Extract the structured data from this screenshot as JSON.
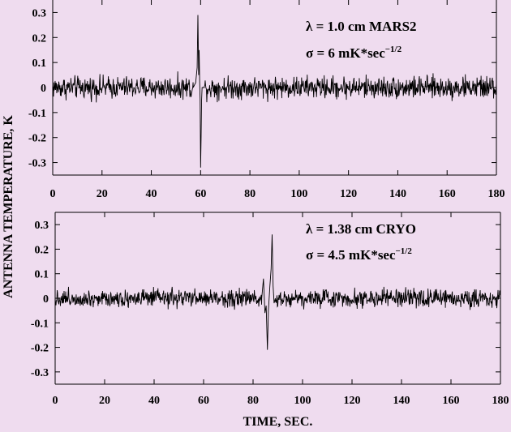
{
  "chart_data": {
    "type": "line",
    "shared_ylabel": "ANTENNA TEMPERATURE, K",
    "panels": [
      {
        "annotation_line1": "λ = 1.0 cm MARS2",
        "annotation_line2_base": "σ = 6 mK*sec",
        "annotation_line2_sup": "−1/2",
        "xlabel": "",
        "xlim": [
          0,
          180
        ],
        "ylim": [
          -0.35,
          0.35
        ],
        "xticks": [
          "0",
          "20",
          "40",
          "60",
          "80",
          "100",
          "120",
          "140",
          "160",
          "180"
        ],
        "yticks": [
          "0.3",
          "0.2",
          "0.1",
          "0",
          "-0.1",
          "-0.2",
          "-0.3"
        ],
        "noise_sigma": 0.022,
        "event": [
          [
            57.0,
            0.0
          ],
          [
            58.0,
            0.02
          ],
          [
            58.6,
            0.08
          ],
          [
            58.9,
            0.29
          ],
          [
            59.2,
            0.05
          ],
          [
            59.4,
            0.15
          ],
          [
            59.6,
            0.03
          ],
          [
            59.8,
            -0.05
          ],
          [
            60.0,
            -0.32
          ],
          [
            60.2,
            -0.2
          ],
          [
            60.4,
            -0.05
          ],
          [
            60.6,
            0.0
          ],
          [
            61.5,
            0.0
          ]
        ]
      },
      {
        "annotation_line1": "λ = 1.38 cm CRYO",
        "annotation_line2_base": "σ = 4.5 mK*sec",
        "annotation_line2_sup": "−1/2",
        "xlabel": "TIME, SEC.",
        "xlim": [
          0,
          180
        ],
        "ylim": [
          -0.35,
          0.35
        ],
        "xticks": [
          "0",
          "20",
          "40",
          "60",
          "80",
          "100",
          "120",
          "140",
          "160",
          "180"
        ],
        "yticks": [
          "0.3",
          "0.2",
          "0.1",
          "0",
          "-0.1",
          "-0.2",
          "-0.3"
        ],
        "noise_sigma": 0.018,
        "event": [
          [
            83.5,
            0.0
          ],
          [
            84.2,
            0.08
          ],
          [
            84.8,
            -0.06
          ],
          [
            85.3,
            -0.03
          ],
          [
            85.8,
            -0.21
          ],
          [
            86.2,
            -0.05
          ],
          [
            86.8,
            0.05
          ],
          [
            87.3,
            0.12
          ],
          [
            87.7,
            0.26
          ],
          [
            88.1,
            0.05
          ],
          [
            88.5,
            -0.02
          ],
          [
            89.0,
            0.0
          ]
        ]
      }
    ]
  }
}
